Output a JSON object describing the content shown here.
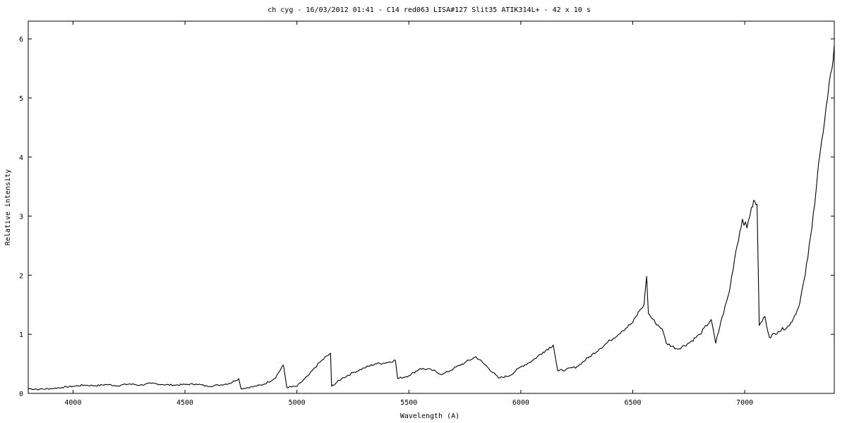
{
  "chart_data": {
    "type": "line",
    "title": "ch cyg - 16/03/2012 01:41 - C14 red063 LISA#127 Slit35 ATIK314L+ - 42 x 10 s",
    "xlabel": "Wavelength (A)",
    "ylabel": "Relative intensity",
    "xlim": [
      3800,
      7400
    ],
    "ylim": [
      0,
      6.3
    ],
    "x_ticks": [
      4000,
      4500,
      5000,
      5500,
      6000,
      6500,
      7000
    ],
    "y_ticks": [
      0,
      1,
      2,
      3,
      4,
      5,
      6
    ],
    "grid": false,
    "series": [
      {
        "color": "#000000",
        "points": [
          [
            3800,
            0.08
          ],
          [
            3850,
            0.07
          ],
          [
            3900,
            0.08
          ],
          [
            3950,
            0.1
          ],
          [
            4000,
            0.12
          ],
          [
            4050,
            0.14
          ],
          [
            4100,
            0.13
          ],
          [
            4150,
            0.15
          ],
          [
            4200,
            0.13
          ],
          [
            4250,
            0.16
          ],
          [
            4300,
            0.14
          ],
          [
            4350,
            0.17
          ],
          [
            4400,
            0.15
          ],
          [
            4450,
            0.14
          ],
          [
            4500,
            0.15
          ],
          [
            4550,
            0.16
          ],
          [
            4600,
            0.12
          ],
          [
            4650,
            0.14
          ],
          [
            4700,
            0.17
          ],
          [
            4740,
            0.25
          ],
          [
            4750,
            0.08
          ],
          [
            4800,
            0.11
          ],
          [
            4850,
            0.15
          ],
          [
            4900,
            0.25
          ],
          [
            4940,
            0.48
          ],
          [
            4955,
            0.1
          ],
          [
            5000,
            0.12
          ],
          [
            5050,
            0.3
          ],
          [
            5100,
            0.52
          ],
          [
            5150,
            0.68
          ],
          [
            5155,
            0.12
          ],
          [
            5200,
            0.25
          ],
          [
            5250,
            0.35
          ],
          [
            5300,
            0.43
          ],
          [
            5350,
            0.5
          ],
          [
            5400,
            0.52
          ],
          [
            5440,
            0.56
          ],
          [
            5450,
            0.25
          ],
          [
            5500,
            0.3
          ],
          [
            5550,
            0.42
          ],
          [
            5600,
            0.4
          ],
          [
            5650,
            0.32
          ],
          [
            5700,
            0.42
          ],
          [
            5750,
            0.52
          ],
          [
            5800,
            0.62
          ],
          [
            5850,
            0.45
          ],
          [
            5900,
            0.26
          ],
          [
            5950,
            0.3
          ],
          [
            6000,
            0.45
          ],
          [
            6050,
            0.55
          ],
          [
            6100,
            0.7
          ],
          [
            6145,
            0.82
          ],
          [
            6165,
            0.38
          ],
          [
            6200,
            0.4
          ],
          [
            6250,
            0.45
          ],
          [
            6300,
            0.6
          ],
          [
            6350,
            0.75
          ],
          [
            6400,
            0.9
          ],
          [
            6450,
            1.05
          ],
          [
            6500,
            1.2
          ],
          [
            6530,
            1.4
          ],
          [
            6550,
            1.5
          ],
          [
            6562,
            1.98
          ],
          [
            6570,
            1.35
          ],
          [
            6600,
            1.2
          ],
          [
            6630,
            1.1
          ],
          [
            6650,
            0.85
          ],
          [
            6700,
            0.75
          ],
          [
            6750,
            0.85
          ],
          [
            6800,
            1.0
          ],
          [
            6850,
            1.25
          ],
          [
            6870,
            0.85
          ],
          [
            6900,
            1.3
          ],
          [
            6930,
            1.7
          ],
          [
            6960,
            2.4
          ],
          [
            6990,
            2.95
          ],
          [
            7010,
            2.8
          ],
          [
            7030,
            3.15
          ],
          [
            7045,
            3.25
          ],
          [
            7055,
            3.2
          ],
          [
            7065,
            1.15
          ],
          [
            7090,
            1.3
          ],
          [
            7110,
            0.95
          ],
          [
            7150,
            1.05
          ],
          [
            7200,
            1.15
          ],
          [
            7240,
            1.45
          ],
          [
            7270,
            2.0
          ],
          [
            7300,
            2.8
          ],
          [
            7330,
            3.9
          ],
          [
            7350,
            4.4
          ],
          [
            7370,
            5.0
          ],
          [
            7390,
            5.5
          ],
          [
            7400,
            5.9
          ]
        ]
      }
    ]
  }
}
